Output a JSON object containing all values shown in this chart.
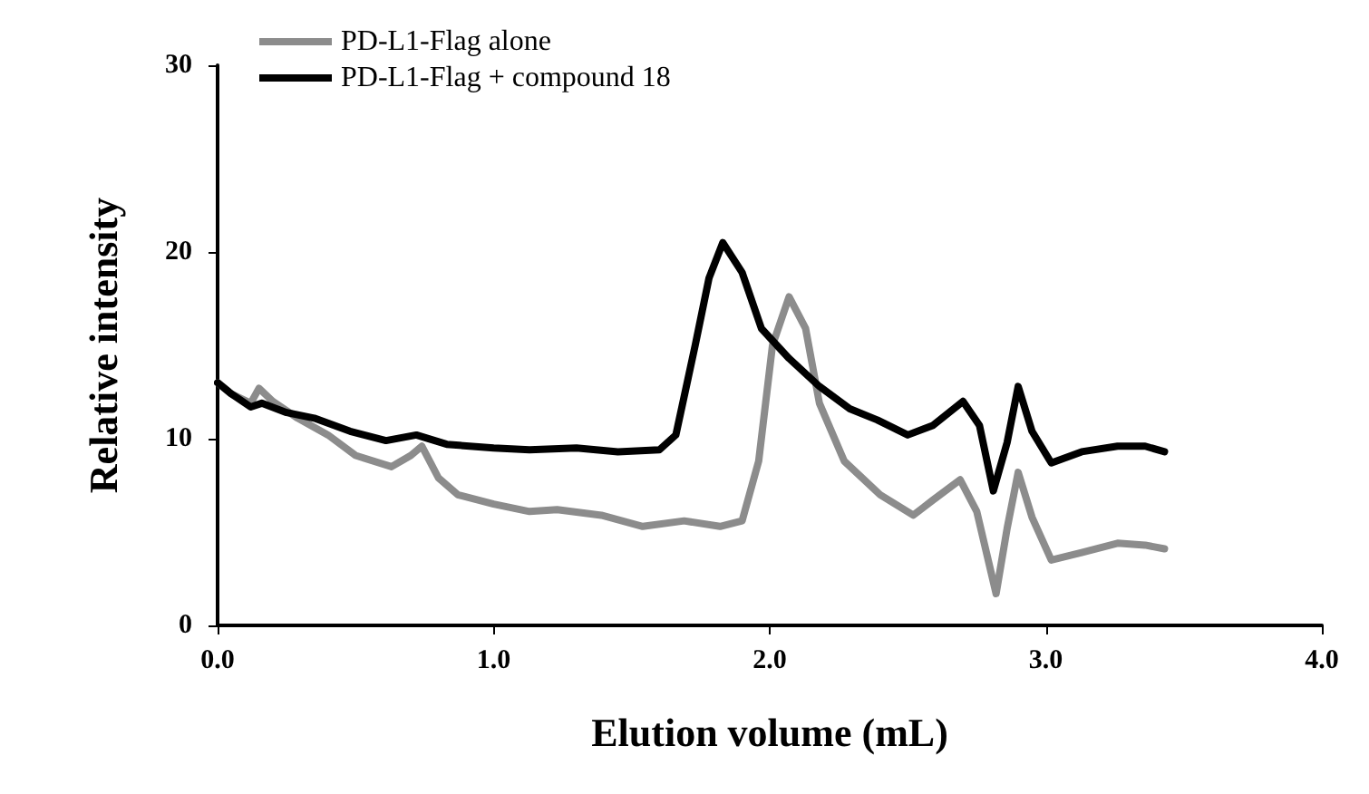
{
  "chart_data": {
    "type": "line",
    "xlabel": "Elution volume (mL)",
    "ylabel": "Relative intensity",
    "xlim": [
      0,
      4
    ],
    "xticks": [
      {
        "value": 0,
        "label": "0.0"
      },
      {
        "value": 1,
        "label": "1.0"
      },
      {
        "value": 2,
        "label": "2.0"
      },
      {
        "value": 3,
        "label": "3.0"
      },
      {
        "value": 4,
        "label": "4.0"
      }
    ],
    "ylim": [
      0,
      30
    ],
    "yticks": [
      0,
      10,
      20,
      30
    ],
    "grid": false,
    "legend": "top left",
    "marker": "none",
    "line_style": "solid",
    "series": [
      {
        "name": "PD-L1-Flag alone",
        "color": "#8c8c8c",
        "x": [
          0,
          0.05,
          0.12,
          0.15,
          0.2,
          0.29,
          0.4,
          0.5,
          0.63,
          0.7,
          0.74,
          0.8,
          0.87,
          1.0,
          1.13,
          1.23,
          1.39,
          1.54,
          1.69,
          1.82,
          1.9,
          1.96,
          2.01,
          2.07,
          2.13,
          2.18,
          2.27,
          2.4,
          2.52,
          2.59,
          2.69,
          2.75,
          2.82,
          2.86,
          2.9,
          2.95,
          3.02,
          3.13,
          3.26,
          3.36,
          3.43
        ],
        "values": [
          13.0,
          12.4,
          11.9,
          12.7,
          12.0,
          11.1,
          10.2,
          9.1,
          8.5,
          9.1,
          9.6,
          7.9,
          7.0,
          6.5,
          6.1,
          6.2,
          5.9,
          5.3,
          5.6,
          5.3,
          5.6,
          8.8,
          15.0,
          17.6,
          15.9,
          11.9,
          8.8,
          7.0,
          5.9,
          6.7,
          7.8,
          6.1,
          1.7,
          5.2,
          8.2,
          5.8,
          3.5,
          3.9,
          4.4,
          4.3,
          4.1
        ]
      },
      {
        "name": "PD-L1-Flag + compound 18",
        "color": "#000000",
        "x": [
          0,
          0.05,
          0.12,
          0.16,
          0.25,
          0.35,
          0.48,
          0.61,
          0.72,
          0.83,
          1.0,
          1.13,
          1.3,
          1.45,
          1.6,
          1.66,
          1.73,
          1.78,
          1.83,
          1.9,
          1.97,
          2.07,
          2.18,
          2.29,
          2.39,
          2.5,
          2.59,
          2.7,
          2.76,
          2.81,
          2.86,
          2.9,
          2.95,
          3.02,
          3.13,
          3.26,
          3.36,
          3.43
        ],
        "values": [
          13.0,
          12.4,
          11.7,
          11.9,
          11.4,
          11.1,
          10.4,
          9.9,
          10.2,
          9.7,
          9.5,
          9.4,
          9.5,
          9.3,
          9.4,
          10.2,
          15.0,
          18.6,
          20.5,
          18.9,
          15.9,
          14.3,
          12.8,
          11.6,
          11.0,
          10.2,
          10.7,
          12.0,
          10.7,
          7.2,
          9.8,
          12.8,
          10.4,
          8.7,
          9.3,
          9.6,
          9.6,
          9.3
        ]
      }
    ]
  }
}
